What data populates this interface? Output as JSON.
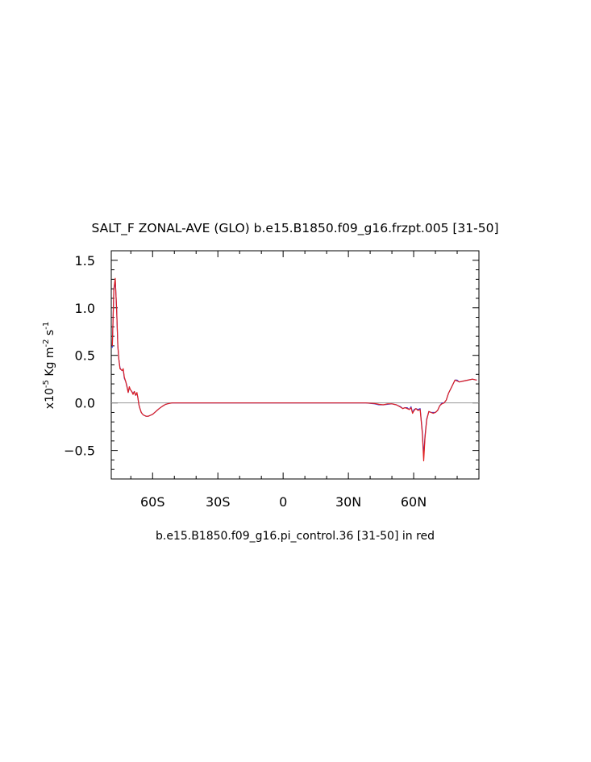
{
  "chart_data": {
    "type": "line",
    "title": "SALT_F ZONAL-AVE (GLO) b.e15.B1850.f09_g16.frzpt.005 [31-50]",
    "subtitle": "b.e15.B1850.f09_g16.pi_control.36 [31-50] in red",
    "ylabel": {
      "prefix": "x10",
      "exp1": "-5",
      "mid": " Kg m",
      "exp2": "-2",
      "mid2": " s",
      "exp3": "-1"
    },
    "xlabel": "",
    "xlim": [
      -79,
      90
    ],
    "ylim": [
      -0.8,
      1.6
    ],
    "x_ticks": [
      {
        "value": -60,
        "label": "60S"
      },
      {
        "value": -30,
        "label": "30S"
      },
      {
        "value": 0,
        "label": "0"
      },
      {
        "value": 30,
        "label": "30N"
      },
      {
        "value": 60,
        "label": "60N"
      }
    ],
    "y_ticks": [
      {
        "value": 1.5,
        "label": "1.5"
      },
      {
        "value": 1.0,
        "label": "1.0"
      },
      {
        "value": 0.5,
        "label": "0.5"
      },
      {
        "value": 0.0,
        "label": "0.0"
      },
      {
        "value": -0.5,
        "label": "−0.5"
      }
    ],
    "reference_line": 0,
    "series": [
      {
        "color": "#3b3bdb",
        "x": [
          -78.5,
          -77.8,
          -77.2,
          -76.5,
          -76.0,
          -75.5,
          -75.0,
          -74.5,
          -74.0,
          -73.5,
          -73.0,
          -72.3,
          -71.8,
          -71.2,
          -70.7,
          -70.2,
          -69.6,
          -69.0,
          -68.4,
          -67.8,
          -67.2,
          -66.8,
          -66.3,
          -65.8,
          -65.2,
          -64.6,
          -64.0,
          -63.0,
          -62.0,
          -61.0,
          -60.0,
          -58.5,
          -57.0,
          -55.5,
          -54.0,
          -52.5,
          -51.0,
          -49.5,
          -48.0,
          -45.0,
          -40.0,
          -30.0,
          -20.0,
          -10.0,
          0.0,
          10.0,
          20.0,
          30.0,
          38.0,
          42.0,
          44.0,
          46.0,
          48.0,
          50.0,
          52.0,
          54.0,
          55.0,
          56.0,
          57.0,
          58.0,
          58.8,
          59.5,
          60.2,
          61.0,
          62.0,
          63.0,
          64.0,
          64.6,
          65.2,
          66.0,
          67.0,
          68.0,
          69.0,
          70.0,
          71.0,
          72.0,
          73.0,
          74.0,
          75.0,
          76.0,
          77.5,
          79.0,
          80.0,
          81.0,
          83.0,
          85.0,
          87.0,
          89.0
        ],
        "y": [
          0.58,
          1.18,
          1.3,
          0.98,
          0.6,
          0.46,
          0.37,
          0.35,
          0.34,
          0.35,
          0.26,
          0.22,
          0.18,
          0.11,
          0.16,
          0.14,
          0.12,
          0.1,
          0.12,
          0.08,
          0.1,
          0.06,
          -0.02,
          -0.06,
          -0.1,
          -0.12,
          -0.13,
          -0.14,
          -0.14,
          -0.13,
          -0.12,
          -0.09,
          -0.06,
          -0.035,
          -0.015,
          -0.005,
          0.0,
          0.0,
          0.0,
          0.0,
          0.0,
          0.0,
          0.0,
          0.0,
          0.0,
          0.0,
          0.0,
          0.0,
          0.0,
          -0.01,
          -0.02,
          -0.02,
          -0.015,
          -0.01,
          -0.02,
          -0.04,
          -0.06,
          -0.05,
          -0.05,
          -0.07,
          -0.04,
          -0.1,
          -0.07,
          -0.06,
          -0.07,
          -0.06,
          -0.3,
          -0.56,
          -0.35,
          -0.17,
          -0.09,
          -0.1,
          -0.1,
          -0.1,
          -0.08,
          -0.03,
          0.0,
          0.0,
          0.03,
          0.1,
          0.17,
          0.24,
          0.24,
          0.22,
          0.23,
          0.24,
          0.25,
          0.24
        ]
      },
      {
        "color": "#e02020",
        "x": [
          -78.5,
          -77.8,
          -77.2,
          -76.5,
          -76.0,
          -75.5,
          -75.0,
          -74.5,
          -74.0,
          -73.5,
          -73.0,
          -72.3,
          -71.8,
          -71.2,
          -70.7,
          -70.2,
          -69.6,
          -69.0,
          -68.4,
          -67.8,
          -67.2,
          -66.8,
          -66.3,
          -65.8,
          -65.2,
          -64.6,
          -64.0,
          -63.0,
          -62.0,
          -61.0,
          -60.0,
          -58.5,
          -57.0,
          -55.5,
          -54.0,
          -52.5,
          -51.0,
          -49.5,
          -48.0,
          -45.0,
          -40.0,
          -30.0,
          -20.0,
          -10.0,
          0.0,
          10.0,
          20.0,
          30.0,
          38.0,
          42.0,
          44.0,
          46.0,
          48.0,
          50.0,
          52.0,
          54.0,
          55.0,
          56.0,
          57.0,
          58.0,
          58.8,
          59.5,
          60.2,
          61.0,
          62.0,
          63.0,
          64.0,
          64.6,
          65.2,
          66.0,
          67.0,
          68.0,
          69.0,
          70.0,
          71.0,
          72.0,
          73.0,
          74.0,
          75.0,
          76.0,
          77.5,
          79.0,
          80.0,
          81.0,
          83.0,
          85.0,
          87.0,
          89.0
        ],
        "y": [
          0.6,
          1.2,
          1.31,
          0.97,
          0.61,
          0.46,
          0.36,
          0.35,
          0.34,
          0.36,
          0.27,
          0.22,
          0.17,
          0.11,
          0.17,
          0.14,
          0.12,
          0.09,
          0.12,
          0.08,
          0.11,
          0.06,
          -0.02,
          -0.06,
          -0.1,
          -0.12,
          -0.13,
          -0.14,
          -0.14,
          -0.13,
          -0.12,
          -0.09,
          -0.06,
          -0.035,
          -0.015,
          -0.005,
          0.0,
          0.0,
          0.0,
          0.0,
          0.0,
          0.0,
          0.0,
          0.0,
          0.0,
          0.0,
          0.0,
          0.0,
          0.0,
          -0.005,
          -0.015,
          -0.02,
          -0.01,
          -0.01,
          -0.02,
          -0.045,
          -0.06,
          -0.05,
          -0.06,
          -0.07,
          -0.05,
          -0.11,
          -0.08,
          -0.06,
          -0.08,
          -0.07,
          -0.32,
          -0.61,
          -0.37,
          -0.18,
          -0.09,
          -0.1,
          -0.11,
          -0.1,
          -0.08,
          -0.03,
          -0.01,
          0.0,
          0.03,
          0.1,
          0.17,
          0.24,
          0.23,
          0.22,
          0.23,
          0.24,
          0.25,
          0.24
        ]
      }
    ],
    "grid": false
  }
}
